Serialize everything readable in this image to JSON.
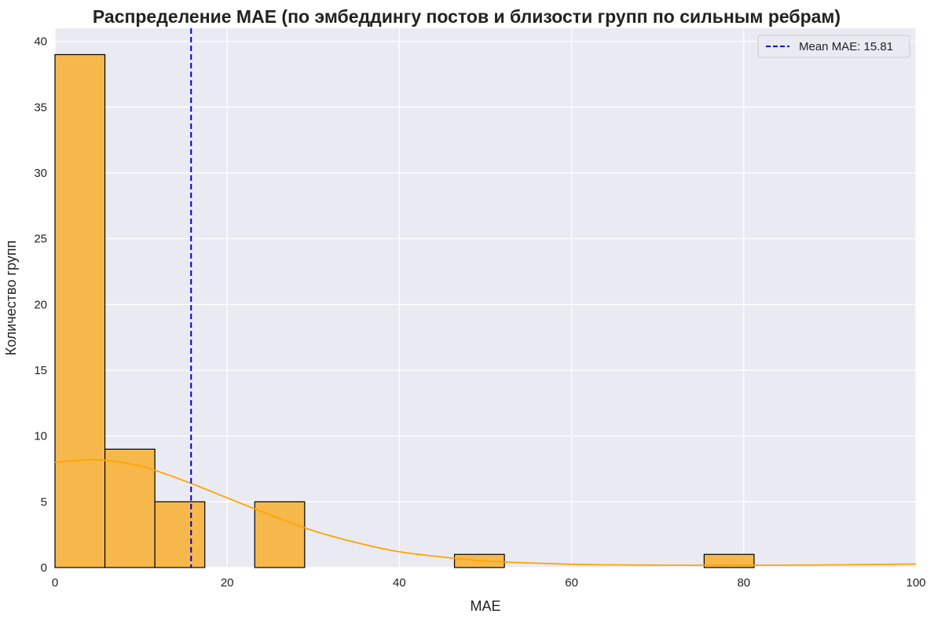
{
  "chart_data": {
    "type": "bar",
    "title": "Распределение MAE (по эмбеддингу постов и близости групп по сильным ребрам)",
    "xlabel": "MAE",
    "ylabel": "Количество групп",
    "xlim": [
      0,
      100
    ],
    "ylim": [
      0,
      41
    ],
    "xticks": [
      0,
      20,
      40,
      60,
      80,
      100
    ],
    "yticks": [
      0,
      5,
      10,
      15,
      20,
      25,
      30,
      35,
      40
    ],
    "grid": true,
    "legend_position": "top-right",
    "bin_edges": [
      0,
      5.8,
      11.6,
      17.4,
      23.2,
      29.0,
      34.8,
      40.6,
      46.4,
      52.2,
      58.0,
      63.8,
      69.6,
      75.4,
      81.2
    ],
    "counts": [
      39,
      9,
      5,
      0,
      5,
      0,
      0,
      0,
      1,
      0,
      0,
      0,
      0,
      1
    ],
    "kde": {
      "x": [
        0,
        5,
        10,
        15,
        20,
        25,
        30,
        35,
        40,
        45,
        50,
        55,
        60,
        65,
        70,
        75,
        80,
        85,
        90,
        95,
        100
      ],
      "y": [
        8.0,
        8.2,
        7.7,
        6.6,
        5.3,
        4.0,
        2.8,
        1.9,
        1.2,
        0.8,
        0.5,
        0.35,
        0.25,
        0.2,
        0.18,
        0.17,
        0.17,
        0.18,
        0.2,
        0.23,
        0.27
      ]
    },
    "mean_line": {
      "value": 15.81,
      "label": "Mean MAE: 15.81"
    },
    "colors": {
      "bar_fill": "#f7b84b",
      "bar_edge": "#000000",
      "kde_line": "#ffa500",
      "mean_line": "#0000cc",
      "plot_bg": "#eaeaf2",
      "grid": "#ffffff"
    }
  }
}
